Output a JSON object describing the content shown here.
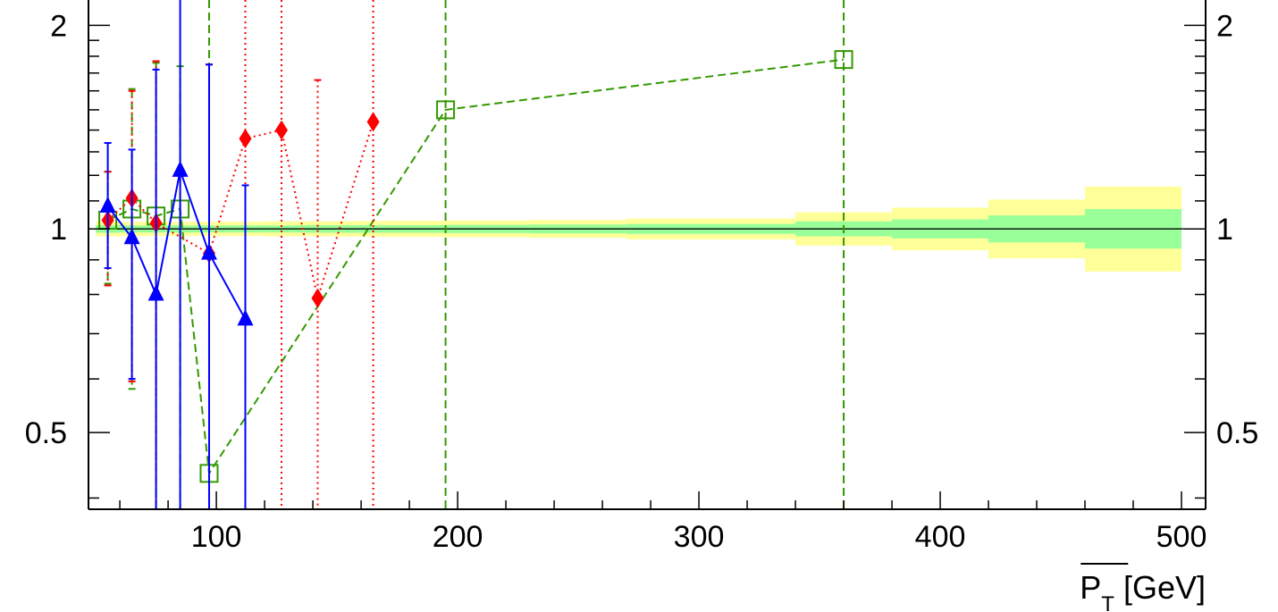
{
  "chart_data": {
    "type": "line",
    "xlabel_main": "P",
    "xlabel_sub": "T",
    "xlabel_unit": " [GeV]",
    "xlim": [
      47,
      510
    ],
    "ylim": [
      0.385,
      2.18
    ],
    "y_scale": "log",
    "x_major_ticks": [
      100,
      200,
      300,
      400,
      500
    ],
    "x_tick_labels": [
      "100",
      "200",
      "300",
      "400",
      "500"
    ],
    "y_labeled_ticks": [
      0.5,
      1,
      2
    ],
    "y_tick_labels": [
      "0.5",
      "1",
      "2"
    ],
    "reference_line": 1,
    "bands": [
      {
        "x0": 50,
        "x1": 60,
        "inner": [
          0.987,
          1.013
        ],
        "outer": [
          0.975,
          1.025
        ]
      },
      {
        "x0": 60,
        "x1": 70,
        "inner": [
          0.988,
          1.012
        ],
        "outer": [
          0.976,
          1.024
        ]
      },
      {
        "x0": 70,
        "x1": 80,
        "inner": [
          0.988,
          1.012
        ],
        "outer": [
          0.976,
          1.024
        ]
      },
      {
        "x0": 80,
        "x1": 90,
        "inner": [
          0.988,
          1.012
        ],
        "outer": [
          0.976,
          1.024
        ]
      },
      {
        "x0": 90,
        "x1": 105,
        "inner": [
          0.988,
          1.012
        ],
        "outer": [
          0.976,
          1.025
        ]
      },
      {
        "x0": 105,
        "x1": 120,
        "inner": [
          0.988,
          1.012
        ],
        "outer": [
          0.976,
          1.025
        ]
      },
      {
        "x0": 120,
        "x1": 135,
        "inner": [
          0.988,
          1.012
        ],
        "outer": [
          0.975,
          1.026
        ]
      },
      {
        "x0": 135,
        "x1": 150,
        "inner": [
          0.987,
          1.013
        ],
        "outer": [
          0.975,
          1.026
        ]
      },
      {
        "x0": 150,
        "x1": 170,
        "inner": [
          0.987,
          1.013
        ],
        "outer": [
          0.974,
          1.027
        ]
      },
      {
        "x0": 170,
        "x1": 195,
        "inner": [
          0.987,
          1.013
        ],
        "outer": [
          0.973,
          1.028
        ]
      },
      {
        "x0": 195,
        "x1": 230,
        "inner": [
          0.986,
          1.014
        ],
        "outer": [
          0.972,
          1.029
        ]
      },
      {
        "x0": 230,
        "x1": 270,
        "inner": [
          0.985,
          1.015
        ],
        "outer": [
          0.97,
          1.031
        ]
      },
      {
        "x0": 270,
        "x1": 340,
        "inner": [
          0.983,
          1.017
        ],
        "outer": [
          0.965,
          1.036
        ]
      },
      {
        "x0": 340,
        "x1": 380,
        "inner": [
          0.975,
          1.026
        ],
        "outer": [
          0.945,
          1.058
        ]
      },
      {
        "x0": 380,
        "x1": 420,
        "inner": [
          0.968,
          1.033
        ],
        "outer": [
          0.93,
          1.075
        ]
      },
      {
        "x0": 420,
        "x1": 460,
        "inner": [
          0.955,
          1.047
        ],
        "outer": [
          0.905,
          1.105
        ]
      },
      {
        "x0": 460,
        "x1": 500,
        "inner": [
          0.935,
          1.07
        ],
        "outer": [
          0.865,
          1.155
        ]
      }
    ],
    "series": [
      {
        "marker": "triangle",
        "line_style": "solid",
        "points": [
          {
            "x": 55,
            "y": 1.08,
            "ylo": 0.875,
            "yhi": 1.34
          },
          {
            "x": 65,
            "y": 0.97,
            "ylo": 0.6,
            "yhi": 1.31
          },
          {
            "x": 75,
            "y": 0.8,
            "ylo": 0.36,
            "yhi": 1.72
          },
          {
            "x": 85,
            "y": 1.22,
            "ylo": 0.37,
            "yhi": 2.5
          },
          {
            "x": 97,
            "y": 0.92,
            "ylo": 0.3,
            "yhi": 1.75
          },
          {
            "x": 112,
            "y": 0.735,
            "ylo": 0.3,
            "yhi": 1.16
          }
        ]
      },
      {
        "marker": "diamond",
        "line_style": "dotted",
        "points": [
          {
            "x": 55,
            "y": 1.03,
            "ylo": 0.825,
            "yhi": 1.215
          },
          {
            "x": 65,
            "y": 1.11,
            "ylo": 0.595,
            "yhi": 1.6
          },
          {
            "x": 75,
            "y": 1.02,
            "ylo": 0.36,
            "yhi": 1.77
          },
          {
            "x": 97,
            "y": 0.92,
            "ylo": 0.3,
            "yhi": 1.75
          },
          {
            "x": 112,
            "y": 1.36,
            "ylo": 0.3,
            "yhi": 2.5
          },
          {
            "x": 127,
            "y": 1.4,
            "ylo": 0.3,
            "yhi": 2.5
          },
          {
            "x": 142,
            "y": 0.79,
            "ylo": 0.3,
            "yhi": 1.66
          },
          {
            "x": 165,
            "y": 1.44,
            "ylo": 0.3,
            "yhi": 2.5
          }
        ]
      },
      {
        "marker": "open-square",
        "line_style": "dashed",
        "points": [
          {
            "x": 55,
            "y": 1.03,
            "ylo": 0.83,
            "yhi": 1.215
          },
          {
            "x": 65,
            "y": 1.07,
            "ylo": 0.58,
            "yhi": 1.61
          },
          {
            "x": 75,
            "y": 1.045,
            "ylo": 0.36,
            "yhi": 1.76
          },
          {
            "x": 85,
            "y": 1.07,
            "ylo": 0.38,
            "yhi": 1.74
          },
          {
            "x": 97,
            "y": 0.435,
            "ylo": 0.3,
            "yhi": 2.5
          },
          {
            "x": 195,
            "y": 1.5,
            "ylo": 0.3,
            "yhi": 2.5
          },
          {
            "x": 360,
            "y": 1.78,
            "ylo": 0.3,
            "yhi": 2.5
          }
        ]
      }
    ]
  },
  "colors": {
    "outer_band": "#ffff99",
    "inner_band": "#99ff99",
    "reference_line": "#000000",
    "triangle_series": "#0000ff",
    "diamond_series": "#ff0000",
    "square_series": "#339900"
  }
}
